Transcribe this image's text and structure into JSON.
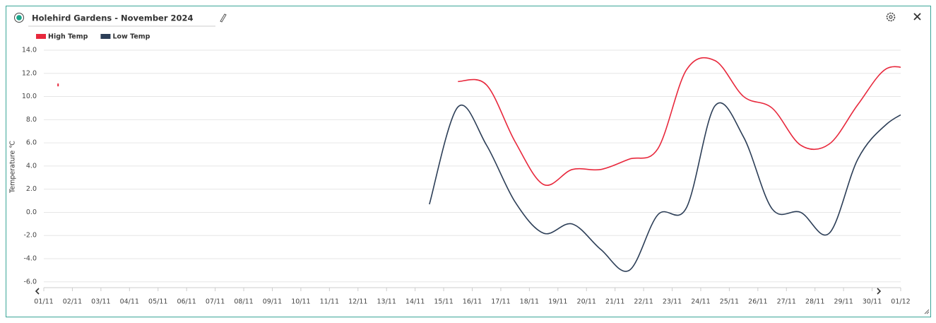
{
  "header": {
    "title": "Holehird Gardens - November 2024"
  },
  "chart_data": {
    "type": "line",
    "y_label": "Temperature ℃",
    "categories": [
      "01/11",
      "02/11",
      "03/11",
      "04/11",
      "05/11",
      "06/11",
      "07/11",
      "08/11",
      "09/11",
      "10/11",
      "11/11",
      "12/11",
      "13/11",
      "14/11",
      "15/11",
      "16/11",
      "17/11",
      "18/11",
      "19/11",
      "20/11",
      "21/11",
      "22/11",
      "23/11",
      "24/11",
      "25/11",
      "26/11",
      "27/11",
      "28/11",
      "29/11",
      "30/11",
      "01/12"
    ],
    "series": [
      {
        "name": "High Temp",
        "color": "#e8283c",
        "values": [
          11.0,
          null,
          null,
          null,
          null,
          null,
          null,
          null,
          null,
          null,
          null,
          null,
          null,
          null,
          11.3,
          11.0,
          6.1,
          2.4,
          3.7,
          3.7,
          4.6,
          5.5,
          12.3,
          13.1,
          10.0,
          9.0,
          5.8,
          5.9,
          9.3,
          12.4,
          12.2
        ]
      },
      {
        "name": "Low Temp",
        "color": "#2c3e57",
        "values": [
          null,
          null,
          null,
          null,
          null,
          null,
          null,
          null,
          null,
          null,
          null,
          null,
          null,
          0.7,
          9.1,
          5.8,
          0.9,
          -1.8,
          -1.0,
          -3.2,
          -5.0,
          -0.2,
          0.4,
          9.2,
          6.5,
          0.3,
          0.0,
          -1.8,
          4.6,
          7.6,
          9.0
        ]
      }
    ],
    "ylim": [
      -6.5,
      14
    ],
    "yticks": [
      {
        "value": -6,
        "label": "-6.0"
      },
      {
        "value": -4,
        "label": "-4.0"
      },
      {
        "value": -2,
        "label": "-2.0"
      },
      {
        "value": 0,
        "label": "0.0"
      },
      {
        "value": 2,
        "label": "2.0"
      },
      {
        "value": 4,
        "label": "4.0"
      },
      {
        "value": 6,
        "label": "6.0"
      },
      {
        "value": 8,
        "label": "8.0"
      },
      {
        "value": 10,
        "label": "10.0"
      },
      {
        "value": 12,
        "label": "12.0"
      },
      {
        "value": 14,
        "label": "14.0"
      }
    ],
    "grid": true
  }
}
